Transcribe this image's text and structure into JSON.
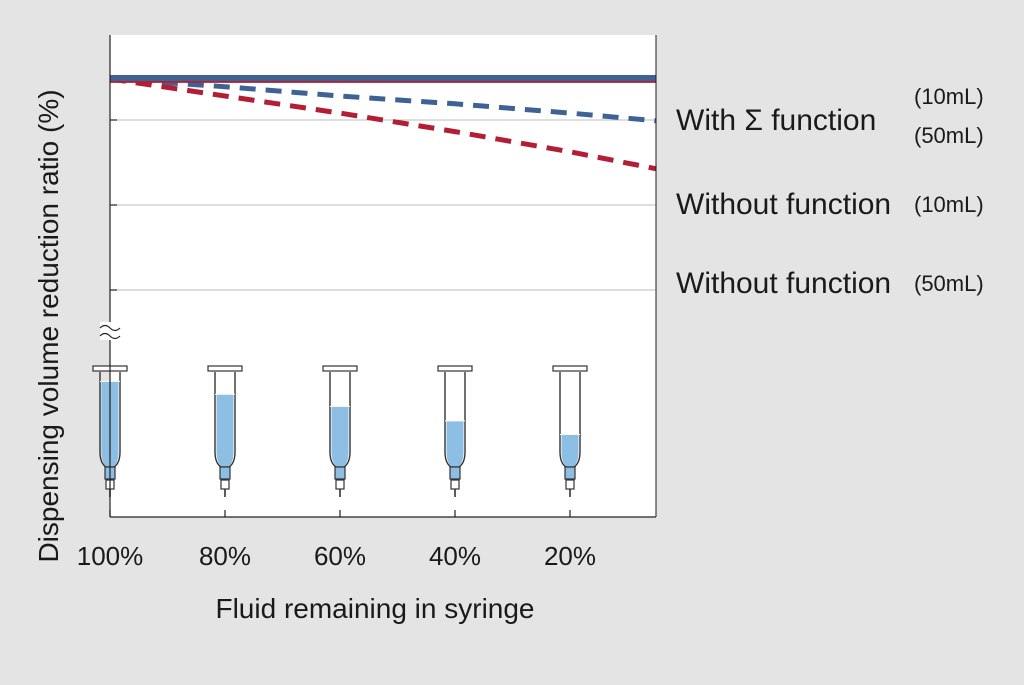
{
  "colors": {
    "background": "#e4e4e4",
    "plot_bg": "#ffffff",
    "blue": "#3f6294",
    "red": "#b31e35",
    "fluid": "#8dbfe4",
    "grid": "#bdbdbd",
    "axis": "#222222"
  },
  "chart_data": {
    "type": "line",
    "ylabel": "Dispensing volume reduction ratio (%)",
    "xlabel": "Fluid remaining in syringe",
    "x_categories": [
      "100%",
      "80%",
      "60%",
      "40%",
      "20%"
    ],
    "x_values": [
      100,
      80,
      60,
      40,
      20
    ],
    "xlim": [
      100,
      5
    ],
    "ylim": [
      0,
      1
    ],
    "axis_break": true,
    "grid": true,
    "series": [
      {
        "group": "With Σ function",
        "volume": "(10mL)",
        "style": "solid",
        "color": "#3f6294",
        "x": [
          100,
          5
        ],
        "y": [
          0.958,
          0.958
        ]
      },
      {
        "group": "With Σ function",
        "volume": "(50mL)",
        "style": "solid",
        "color": "#b31e35",
        "x": [
          100,
          5
        ],
        "y": [
          0.952,
          0.952
        ]
      },
      {
        "group": "Without function",
        "volume": "(10mL)",
        "style": "dashed",
        "color": "#3f6294",
        "x": [
          100,
          80,
          60,
          40,
          20,
          5
        ],
        "y": [
          0.955,
          0.93,
          0.9,
          0.875,
          0.845,
          0.82
        ]
      },
      {
        "group": "Without function",
        "volume": "(50mL)",
        "style": "dashed",
        "color": "#b31e35",
        "x": [
          100,
          80,
          60,
          40,
          20,
          5
        ],
        "y": [
          0.955,
          0.9,
          0.845,
          0.785,
          0.72,
          0.665
        ]
      }
    ],
    "legend": [
      {
        "label": "With Σ function",
        "volumes": [
          "(10mL)",
          "(50mL)"
        ]
      },
      {
        "label": "Without function",
        "volumes": [
          "(10mL)"
        ]
      },
      {
        "label": "Without function",
        "volumes": [
          "(50mL)"
        ]
      }
    ],
    "syringes": [
      {
        "x": 100,
        "fill": 0.93
      },
      {
        "x": 80,
        "fill": 0.76
      },
      {
        "x": 60,
        "fill": 0.6
      },
      {
        "x": 40,
        "fill": 0.41
      },
      {
        "x": 20,
        "fill": 0.23
      }
    ]
  }
}
